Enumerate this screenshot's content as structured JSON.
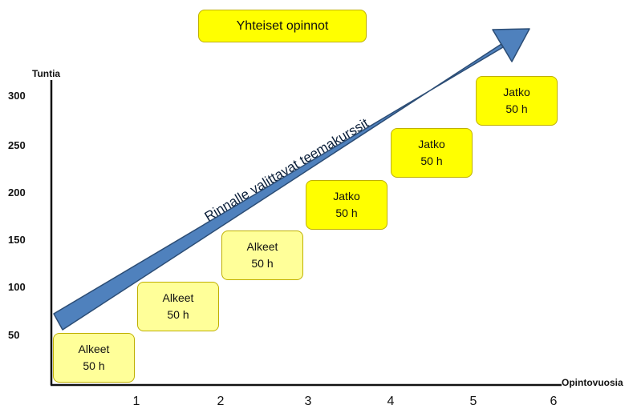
{
  "title": "Yhteiset opinnot",
  "y_axis_label": "Tuntia",
  "x_axis_label": "Opintovuosia",
  "y_ticks": [
    "300",
    "250",
    "200",
    "150",
    "100",
    "50"
  ],
  "x_ticks": [
    "1",
    "2",
    "3",
    "4",
    "5",
    "6"
  ],
  "arrow_label": "Rinnalle valittavat teemakurssit",
  "steps": [
    {
      "name": "Alkeet",
      "hours": "50 h"
    },
    {
      "name": "Alkeet",
      "hours": "50 h"
    },
    {
      "name": "Alkeet",
      "hours": "50 h"
    },
    {
      "name": "Jatko",
      "hours": "50 h"
    },
    {
      "name": "Jatko",
      "hours": "50 h"
    },
    {
      "name": "Jatko",
      "hours": "50 h"
    }
  ],
  "colors": {
    "alkeet_fill": "#ffff99",
    "jatko_fill": "#ffff00",
    "arrow_fill": "#4f81bd",
    "arrow_stroke": "#2c4d75"
  }
}
